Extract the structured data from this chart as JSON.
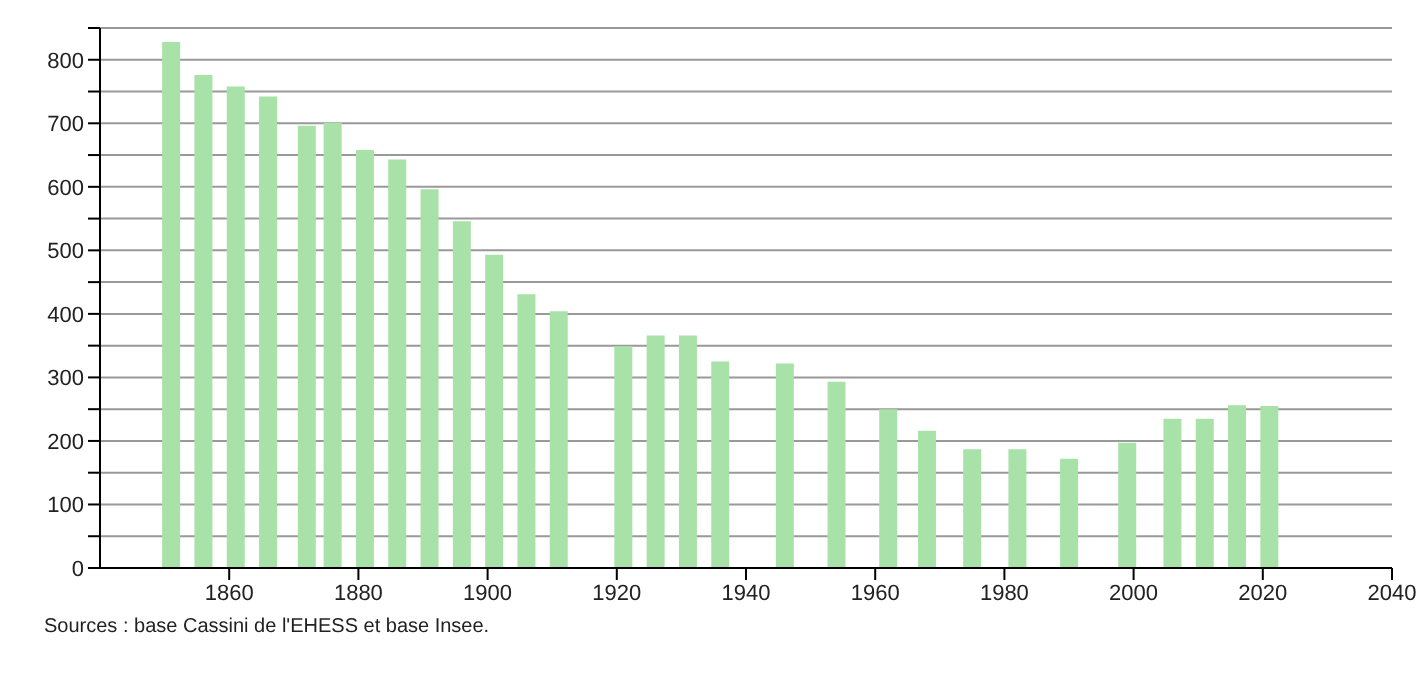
{
  "chart_data": {
    "type": "bar",
    "x": [
      1851,
      1856,
      1861,
      1866,
      1872,
      1876,
      1881,
      1886,
      1891,
      1896,
      1901,
      1906,
      1911,
      1921,
      1926,
      1931,
      1936,
      1946,
      1954,
      1962,
      1968,
      1975,
      1982,
      1990,
      1999,
      2006,
      2011,
      2016,
      2021
    ],
    "values": [
      828,
      776,
      758,
      742,
      696,
      701,
      658,
      643,
      596,
      546,
      493,
      431,
      404,
      349,
      366,
      366,
      325,
      322,
      293,
      250,
      216,
      187,
      187,
      172,
      197,
      235,
      235,
      256,
      255
    ],
    "color": "#a8e2a8",
    "xlim": [
      1840,
      2040
    ],
    "xticks": [
      1860,
      1880,
      1900,
      1920,
      1940,
      1960,
      1980,
      2000,
      2020,
      2040
    ],
    "ylim": [
      0,
      850
    ],
    "yticks": [
      0,
      {
        "value": 50,
        "label": null
      },
      100,
      {
        "value": 150,
        "label": null
      },
      200,
      {
        "value": 250,
        "label": null
      },
      300,
      {
        "value": 350,
        "label": null
      },
      400,
      {
        "value": 450,
        "label": null
      },
      500,
      {
        "value": 550,
        "label": null
      },
      600,
      {
        "value": 650,
        "label": null
      },
      700,
      {
        "value": 750,
        "label": null
      },
      800,
      {
        "value": 850,
        "label": null
      }
    ],
    "grid": "y",
    "annotations": [
      "Sources : base Cassini de l'EHESS et base Insee."
    ]
  }
}
